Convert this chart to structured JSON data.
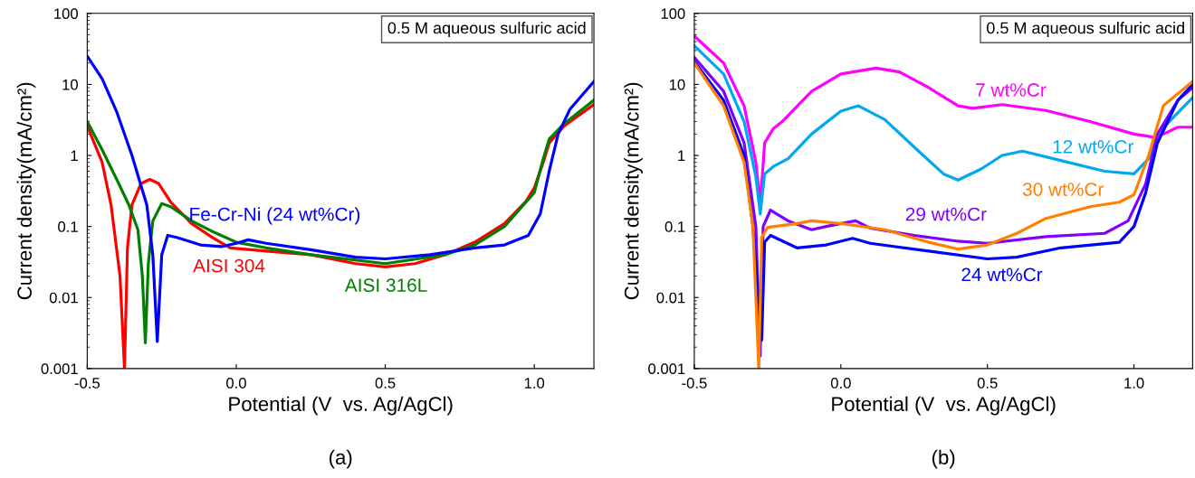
{
  "chart_data": [
    {
      "type": "line",
      "title": "(a)",
      "xlabel": "Potential (V  vs. Ag/AgCl)",
      "ylabel": "Current density(mA/cm²)",
      "annotations": [
        "0.5 M aqueous sulfuric acid"
      ],
      "log": "y",
      "xlim": [
        -0.5,
        1.2
      ],
      "ylim": [
        0.001,
        100
      ],
      "xticks": [
        {
          "value": -0.5,
          "label": "-0.5"
        },
        {
          "value": 0,
          "label": "0.0"
        },
        {
          "value": 0.5,
          "label": "0.5"
        },
        {
          "value": 1,
          "label": "1.0"
        }
      ],
      "yticks": [
        {
          "value": 0.001,
          "label": "0.001"
        },
        {
          "value": 0.01,
          "label": "0.01"
        },
        {
          "value": 0.1,
          "label": "0.1"
        },
        {
          "value": 1,
          "label": "1"
        },
        {
          "value": 10,
          "label": "10"
        },
        {
          "value": 100,
          "label": "100"
        }
      ],
      "grid": false,
      "legend": false,
      "marker": "none",
      "line_style": "solid",
      "series": [
        {
          "name": "AISI 304",
          "color": "#ff0000",
          "x": [
            -0.5,
            -0.45,
            -0.42,
            -0.39,
            -0.375,
            -0.365,
            -0.35,
            -0.32,
            -0.29,
            -0.26,
            -0.22,
            -0.15,
            -0.08,
            -0.02,
            0.1,
            0.25,
            0.4,
            0.5,
            0.6,
            0.7,
            0.8,
            0.9,
            0.97,
            1.0,
            1.03,
            1.05,
            1.1,
            1.2
          ],
          "values": [
            2.6,
            0.8,
            0.2,
            0.02,
            0.001,
            0.05,
            0.2,
            0.4,
            0.46,
            0.4,
            0.22,
            0.11,
            0.07,
            0.05,
            0.045,
            0.04,
            0.03,
            0.027,
            0.03,
            0.04,
            0.06,
            0.11,
            0.22,
            0.35,
            0.8,
            1.5,
            2.6,
            5.2
          ]
        },
        {
          "name": "AISI 316L",
          "color": "#008000",
          "x": [
            -0.5,
            -0.45,
            -0.4,
            -0.36,
            -0.33,
            -0.315,
            -0.305,
            -0.295,
            -0.28,
            -0.25,
            -0.22,
            -0.15,
            -0.08,
            0.0,
            0.1,
            0.25,
            0.5,
            0.7,
            0.8,
            0.9,
            1.0,
            1.03,
            1.05,
            1.1,
            1.2
          ],
          "values": [
            3.0,
            1.2,
            0.45,
            0.2,
            0.09,
            0.02,
            0.0023,
            0.03,
            0.12,
            0.21,
            0.19,
            0.12,
            0.085,
            0.06,
            0.05,
            0.04,
            0.03,
            0.04,
            0.055,
            0.1,
            0.3,
            0.9,
            1.7,
            2.8,
            6
          ]
        },
        {
          "name": "Fe-Cr-Ni (24 wt%Cr)",
          "color": "#0000ff",
          "x": [
            -0.5,
            -0.45,
            -0.4,
            -0.35,
            -0.3,
            -0.28,
            -0.265,
            -0.25,
            -0.23,
            -0.2,
            -0.12,
            -0.05,
            0.0,
            0.04,
            0.1,
            0.25,
            0.4,
            0.5,
            0.65,
            0.8,
            0.9,
            0.98,
            1.02,
            1.05,
            1.08,
            1.12,
            1.2
          ],
          "values": [
            25,
            12,
            4,
            1.0,
            0.2,
            0.04,
            0.0024,
            0.04,
            0.075,
            0.07,
            0.055,
            0.052,
            0.058,
            0.065,
            0.058,
            0.047,
            0.037,
            0.035,
            0.04,
            0.05,
            0.055,
            0.075,
            0.15,
            0.6,
            2.0,
            4.5,
            11
          ]
        }
      ]
    },
    {
      "type": "line",
      "title": "(b)",
      "xlabel": "Potential (V  vs. Ag/AgCl)",
      "ylabel": "Current density(mA/cm²)",
      "annotations": [
        "0.5 M aqueous sulfuric acid"
      ],
      "log": "y",
      "xlim": [
        -0.5,
        1.2
      ],
      "ylim": [
        0.001,
        100
      ],
      "xticks": [
        {
          "value": -0.5,
          "label": "-0.5"
        },
        {
          "value": 0,
          "label": "0.0"
        },
        {
          "value": 0.5,
          "label": "0.5"
        },
        {
          "value": 1,
          "label": "1.0"
        }
      ],
      "yticks": [
        {
          "value": 0.001,
          "label": "0.001"
        },
        {
          "value": 0.01,
          "label": "0.01"
        },
        {
          "value": 0.1,
          "label": "0.1"
        },
        {
          "value": 1,
          "label": "1"
        },
        {
          "value": 10,
          "label": "10"
        },
        {
          "value": 100,
          "label": "100"
        }
      ],
      "grid": false,
      "legend": false,
      "marker": "none",
      "line_style": "solid",
      "series": [
        {
          "name": "7 wt%Cr",
          "color": "#ff00ff",
          "x": [
            -0.5,
            -0.4,
            -0.33,
            -0.29,
            -0.275,
            -0.26,
            -0.23,
            -0.2,
            -0.1,
            0.0,
            0.12,
            0.2,
            0.3,
            0.4,
            0.45,
            0.55,
            0.7,
            0.85,
            1.0,
            1.07,
            1.1,
            1.15,
            1.2
          ],
          "values": [
            48,
            20,
            5,
            0.8,
            0.2,
            1.5,
            2.4,
            3.0,
            8,
            14,
            17,
            15,
            9,
            5,
            4.6,
            5.2,
            4.3,
            3.0,
            2.0,
            1.8,
            2.0,
            2.5,
            2.5
          ]
        },
        {
          "name": "12 wt%Cr",
          "color": "#00a8f0",
          "x": [
            -0.5,
            -0.4,
            -0.33,
            -0.29,
            -0.275,
            -0.26,
            -0.23,
            -0.18,
            -0.1,
            0.0,
            0.06,
            0.15,
            0.27,
            0.35,
            0.4,
            0.48,
            0.55,
            0.62,
            0.75,
            0.9,
            1.0,
            1.05,
            1.08,
            1.15,
            1.2
          ],
          "values": [
            35,
            14,
            3,
            0.5,
            0.15,
            0.55,
            0.7,
            0.9,
            2.0,
            4.2,
            5.0,
            3.2,
            1.1,
            0.55,
            0.45,
            0.65,
            1.0,
            1.15,
            0.85,
            0.6,
            0.55,
            0.9,
            2.0,
            4,
            6.5
          ]
        },
        {
          "name": "29 wt%Cr",
          "color": "#8000ff",
          "x": [
            -0.5,
            -0.4,
            -0.33,
            -0.29,
            -0.275,
            -0.265,
            -0.24,
            -0.18,
            -0.1,
            -0.05,
            0.05,
            0.1,
            0.25,
            0.4,
            0.5,
            0.7,
            0.9,
            0.98,
            1.04,
            1.08,
            1.15,
            1.2
          ],
          "values": [
            24,
            8,
            1.5,
            0.1,
            0.0015,
            0.1,
            0.17,
            0.12,
            0.09,
            0.1,
            0.12,
            0.095,
            0.075,
            0.062,
            0.058,
            0.072,
            0.08,
            0.12,
            0.4,
            2,
            6,
            9
          ]
        },
        {
          "name": "24 wt%Cr",
          "color": "#0000ff",
          "x": [
            -0.5,
            -0.4,
            -0.33,
            -0.3,
            -0.27,
            -0.26,
            -0.24,
            -0.15,
            -0.05,
            0.04,
            0.1,
            0.3,
            0.5,
            0.6,
            0.75,
            0.95,
            1.0,
            1.04,
            1.08,
            1.15,
            1.2
          ],
          "values": [
            21,
            6,
            1,
            0.1,
            0.0025,
            0.06,
            0.075,
            0.05,
            0.055,
            0.068,
            0.058,
            0.045,
            0.035,
            0.037,
            0.05,
            0.06,
            0.1,
            0.3,
            1.5,
            6,
            10
          ]
        },
        {
          "name": "30 wt%Cr",
          "color": "#ff8000",
          "x": [
            -0.5,
            -0.4,
            -0.33,
            -0.3,
            -0.28,
            -0.27,
            -0.25,
            -0.15,
            -0.1,
            0.0,
            0.15,
            0.3,
            0.4,
            0.5,
            0.6,
            0.7,
            0.85,
            0.95,
            1.0,
            1.05,
            1.1,
            1.2
          ],
          "values": [
            20,
            5,
            0.8,
            0.1,
            0.001,
            0.07,
            0.097,
            0.11,
            0.12,
            0.11,
            0.09,
            0.06,
            0.048,
            0.055,
            0.08,
            0.13,
            0.19,
            0.22,
            0.28,
            1.0,
            5,
            11
          ]
        }
      ]
    }
  ]
}
